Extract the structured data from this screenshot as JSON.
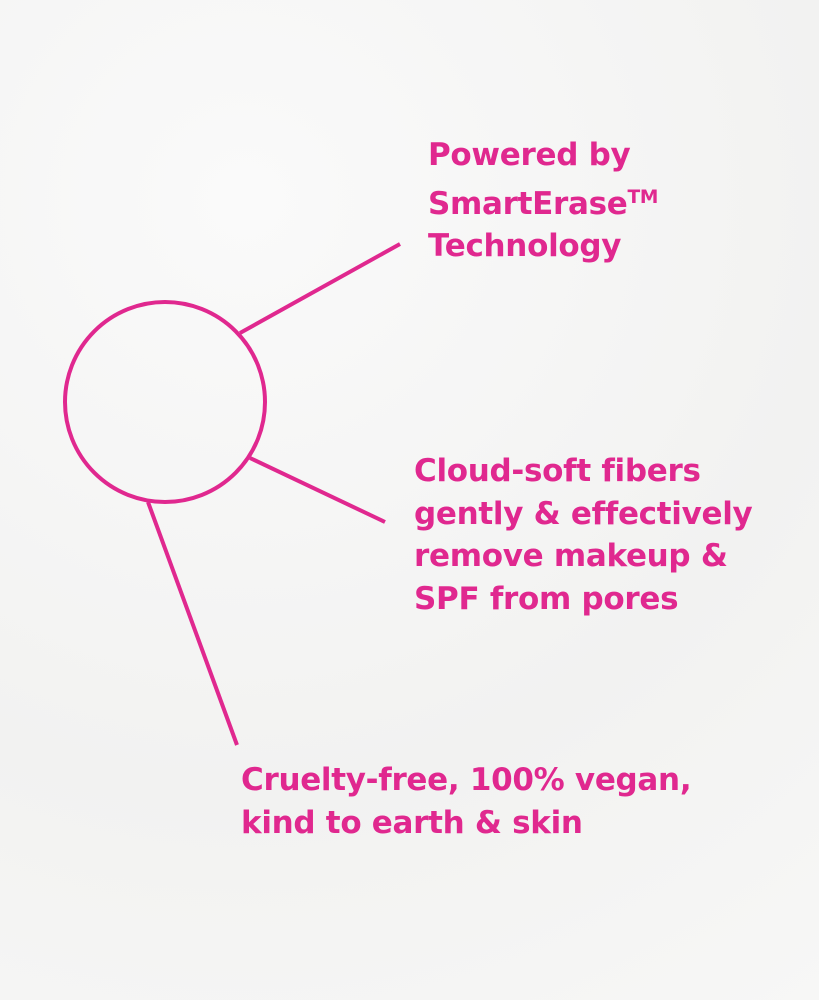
{
  "accent_color": "#e0288f",
  "callouts": [
    {
      "lines": [
        "Powered by",
        "SmartErase",
        "Technology"
      ],
      "trademark": "TM"
    },
    {
      "lines": [
        "Cloud-soft fibers",
        "gently & effectively",
        "remove makeup &",
        "SPF from pores"
      ]
    },
    {
      "lines": [
        "Cruelty-free, 100% vegan,",
        "kind to earth & skin"
      ]
    }
  ]
}
